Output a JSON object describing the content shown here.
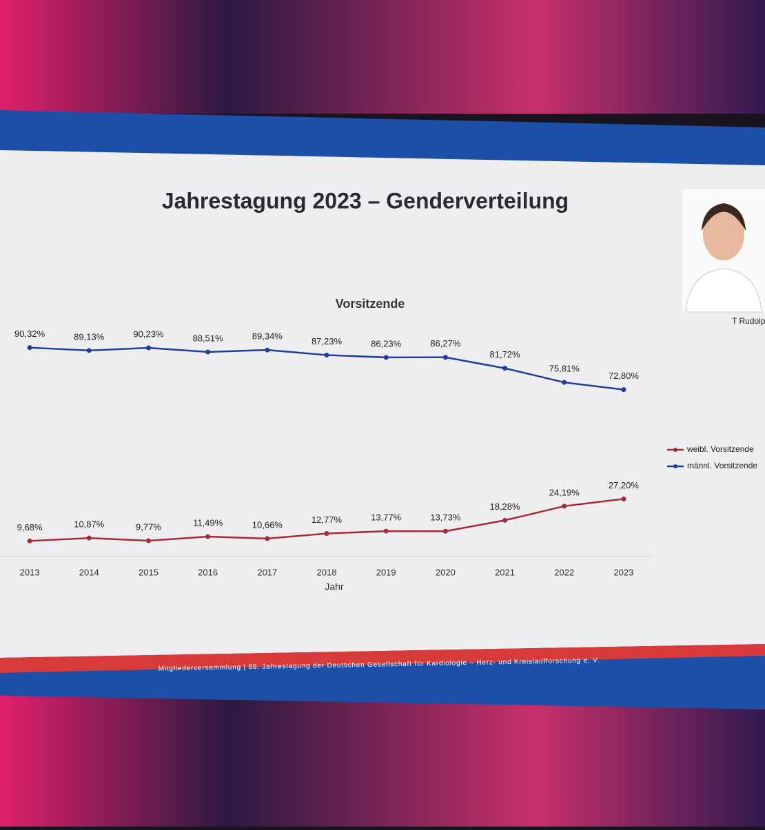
{
  "slide": {
    "title": "Jahrestagung 2023 – Genderverteilung",
    "footer": "Mitgliederversammlung | 89. Jahrestagung der Deutschen Gesellschaft für Kardiologie – Herz- und Kreislaufforschung e. V.",
    "photo_caption": "T Rudolp"
  },
  "chart_data": {
    "type": "line",
    "title": "Vorsitzende",
    "x_label": "Jahr",
    "categories": [
      "2013",
      "2014",
      "2015",
      "2016",
      "2017",
      "2018",
      "2019",
      "2020",
      "2021",
      "2022",
      "2023"
    ],
    "series": [
      {
        "name": "weibl. Vorsitzende",
        "color": "#a52a35",
        "values": [
          9.68,
          10.87,
          9.77,
          11.49,
          10.66,
          12.77,
          13.77,
          13.73,
          18.28,
          24.19,
          27.2
        ],
        "value_labels": [
          "9,68%",
          "10,87%",
          "9,77%",
          "11,49%",
          "10,66%",
          "12,77%",
          "13,77%",
          "13,73%",
          "18,28%",
          "24,19%",
          "27,20%"
        ]
      },
      {
        "name": "männl. Vorsitzende",
        "color": "#1f3c9a",
        "values": [
          90.32,
          89.13,
          90.23,
          88.51,
          89.34,
          87.23,
          86.23,
          86.27,
          81.72,
          75.81,
          72.8
        ],
        "value_labels": [
          "90,32%",
          "89,13%",
          "90,23%",
          "88,51%",
          "89,34%",
          "87,23%",
          "86,23%",
          "86,27%",
          "81,72%",
          "75,81%",
          "72,80%"
        ]
      }
    ],
    "ylim": [
      0,
      100
    ],
    "legend": "right"
  }
}
